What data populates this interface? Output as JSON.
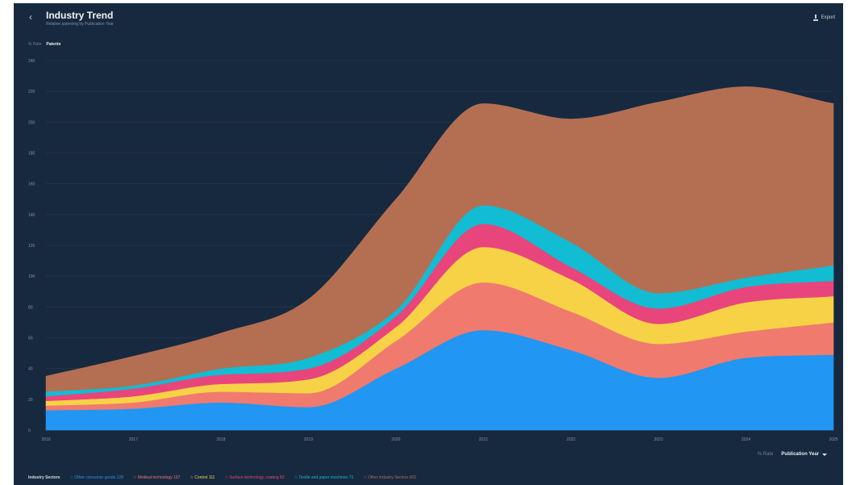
{
  "header": {
    "title": "Industry Trend",
    "subtitle": "Relative patenting by Publication Year",
    "export_label": "Export"
  },
  "toggle": {
    "option_1": "% Rate",
    "option_2": "Patents"
  },
  "controls": {
    "option_1": "% Rate",
    "option_2": "Publication Year"
  },
  "legend": {
    "title": "Industry Sectors"
  },
  "chart_data": {
    "type": "area",
    "stacked": true,
    "x": [
      2016,
      2017,
      2018,
      2019,
      2020,
      2021,
      2022,
      2023,
      2024,
      2025
    ],
    "xlabels": [
      "2016",
      "2017",
      "2018",
      "2019",
      "2020",
      "2021",
      "2022",
      "2023",
      "2024",
      "2025"
    ],
    "ylim": [
      0,
      240
    ],
    "yticks": [
      0,
      20,
      40,
      60,
      80,
      100,
      120,
      140,
      160,
      180,
      200,
      220,
      240
    ],
    "grid": true,
    "legend_position": "bottom",
    "series": [
      {
        "name": "Other consumer goods 128",
        "label": "Other consumer goods 128",
        "color": "#2196f3",
        "values": [
          13,
          14,
          18,
          15,
          40,
          65,
          52,
          34,
          47,
          49
        ]
      },
      {
        "name": "Medical technology 107",
        "label": "Medical technology 107",
        "color": "#f07a6e",
        "values": [
          3,
          4,
          7,
          9,
          18,
          31,
          25,
          22,
          17,
          21
        ]
      },
      {
        "name": "Control 111",
        "label": "Control 111",
        "color": "#f7d247",
        "values": [
          3,
          4,
          5,
          9,
          9,
          23,
          21,
          13,
          19,
          17
        ]
      },
      {
        "name": "Surface technology, coating 82",
        "label": "Surface technology, coating 82",
        "color": "#e8457c",
        "values": [
          3,
          5,
          6,
          7,
          7,
          15,
          8,
          10,
          10,
          10
        ]
      },
      {
        "name": "Textile and paper machines 71",
        "label": "Textile and paper machines 71",
        "color": "#12bcd3",
        "values": [
          3,
          2,
          4,
          7,
          4,
          12,
          16,
          10,
          6,
          10
        ]
      },
      {
        "name": "Other Industry Sectors 602",
        "label": "Other Industry Sectors 602",
        "color": "#b46f52",
        "values": [
          10,
          19,
          23,
          38,
          72,
          66,
          80,
          124,
          124,
          105
        ]
      }
    ]
  }
}
